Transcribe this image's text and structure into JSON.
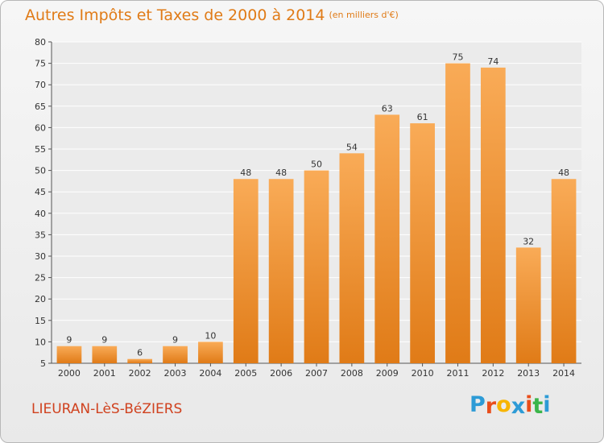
{
  "title": "Autres Impôts et Taxes de 2000 à 2014",
  "unit": "(en milliers d'€)",
  "commune": "LIEURAN-LèS-BéZIERS",
  "brand": {
    "letters": [
      "P",
      "r",
      "o",
      "x",
      "i",
      "t",
      "i"
    ],
    "colors": [
      "#2d9bd6",
      "#e94e1b",
      "#f7b500",
      "#2d9bd6",
      "#e94e1b",
      "#3bb54a",
      "#2d9bd6"
    ]
  },
  "colors": {
    "bar_light": "#f9ab57",
    "bar_dark": "#e07b17",
    "title": "#e07b17",
    "commune": "#d0421f"
  },
  "chart_data": {
    "type": "bar",
    "categories": [
      "2000",
      "2001",
      "2002",
      "2003",
      "2004",
      "2005",
      "2006",
      "2007",
      "2008",
      "2009",
      "2010",
      "2011",
      "2012",
      "2013",
      "2014"
    ],
    "values": [
      9,
      9,
      6,
      9,
      10,
      48,
      48,
      50,
      54,
      63,
      61,
      75,
      74,
      32,
      48
    ],
    "ylim": [
      5,
      80
    ],
    "yticks": [
      5,
      10,
      15,
      20,
      25,
      30,
      35,
      40,
      45,
      50,
      55,
      60,
      65,
      70,
      75,
      80
    ],
    "grid": true
  }
}
